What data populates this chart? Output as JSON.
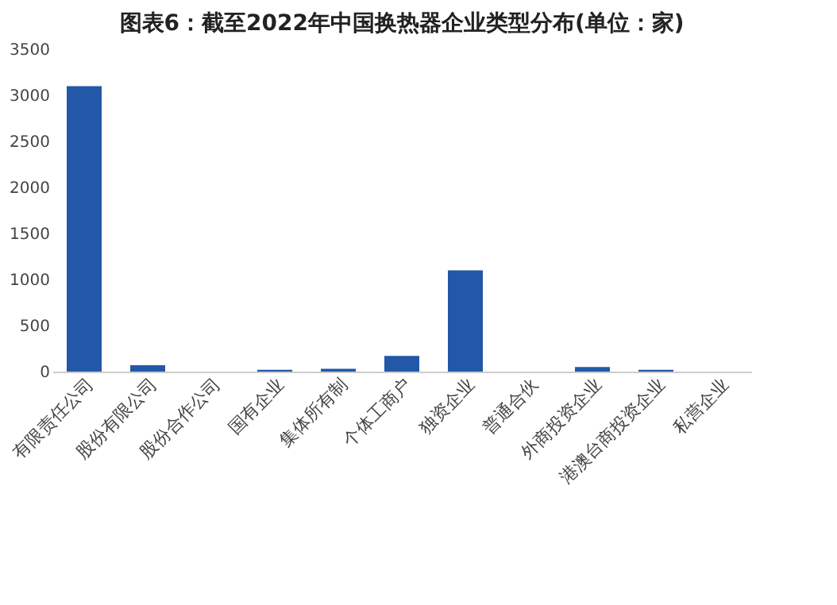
{
  "chart_data": {
    "type": "bar",
    "title": "图表6：截至2022年中国换热器企业类型分布(单位：家)",
    "categories": [
      "有限责任公司",
      "股份有限公司",
      "股份合作公司",
      "国有企业",
      "集体所有制",
      "个体工商户",
      "独资企业",
      "普通合伙",
      "外商投资企业",
      "港澳台商投资企业",
      "私营企业"
    ],
    "values": [
      3100,
      70,
      0,
      20,
      30,
      170,
      1100,
      0,
      50,
      20,
      0
    ],
    "color": "#2358a8",
    "ylim": [
      0,
      3500
    ],
    "yticks": [
      0,
      500,
      1000,
      1500,
      2000,
      2500,
      3000,
      3500
    ],
    "grid": false
  }
}
